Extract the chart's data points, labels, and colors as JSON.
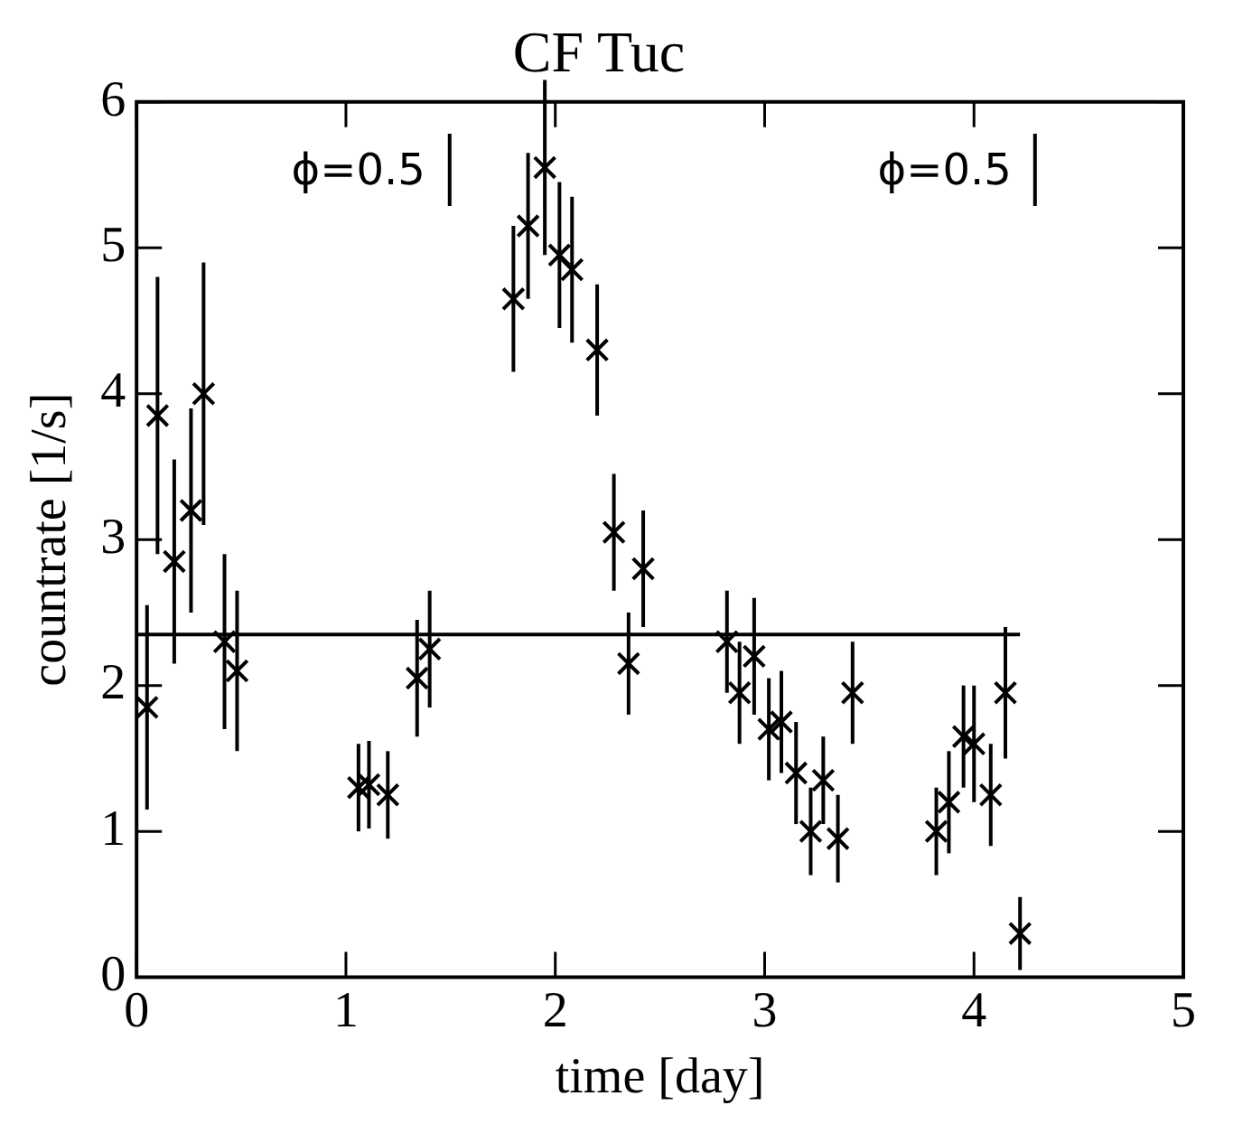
{
  "chart_data": {
    "type": "scatter",
    "title": "CF Tuc",
    "xlabel": "time [day]",
    "ylabel": "countrate [1/s]",
    "xlim": [
      0,
      5
    ],
    "xticks": [
      0,
      1,
      2,
      3,
      4,
      5
    ],
    "ylim": [
      0,
      6
    ],
    "yticks": [
      0,
      1,
      2,
      3,
      4,
      5,
      6
    ],
    "grid": false,
    "legend": false,
    "marker": "cross",
    "annotations": [
      "ϕ=0.5",
      "ϕ=0.5"
    ],
    "series": [
      {
        "type": "scatter",
        "color": "#000000",
        "x": [
          0.05,
          0.1,
          0.18,
          0.26,
          0.32,
          0.42,
          0.48,
          1.06,
          1.11,
          1.2,
          1.34,
          1.4,
          1.8,
          1.87,
          1.95,
          2.02,
          2.08,
          2.2,
          2.28,
          2.35,
          2.42,
          2.82,
          2.88,
          2.95,
          3.02,
          3.08,
          3.15,
          3.22,
          3.28,
          3.35,
          3.42,
          3.82,
          3.88,
          3.95,
          4.0,
          4.08,
          4.15,
          4.22
        ],
        "values": [
          1.85,
          3.85,
          2.85,
          3.2,
          4.0,
          2.3,
          2.1,
          1.3,
          1.32,
          1.25,
          2.05,
          2.25,
          4.65,
          5.15,
          5.55,
          4.95,
          4.85,
          4.3,
          3.05,
          2.15,
          2.8,
          2.3,
          1.95,
          2.2,
          1.7,
          1.75,
          1.4,
          1.0,
          1.35,
          0.95,
          1.95,
          1.0,
          1.2,
          1.65,
          1.6,
          1.25,
          1.95,
          0.3
        ],
        "errors": [
          0.7,
          0.95,
          0.7,
          0.7,
          0.9,
          0.6,
          0.55,
          0.3,
          0.3,
          0.3,
          0.4,
          0.4,
          0.5,
          0.5,
          0.6,
          0.5,
          0.5,
          0.45,
          0.4,
          0.35,
          0.4,
          0.35,
          0.35,
          0.4,
          0.35,
          0.35,
          0.35,
          0.3,
          0.3,
          0.3,
          0.35,
          0.3,
          0.35,
          0.35,
          0.4,
          0.35,
          0.45,
          0.25
        ]
      },
      {
        "type": "line",
        "color": "#000000",
        "marker": "none",
        "x": [
          0,
          4.22
        ],
        "values": [
          2.35,
          2.35
        ]
      }
    ]
  }
}
